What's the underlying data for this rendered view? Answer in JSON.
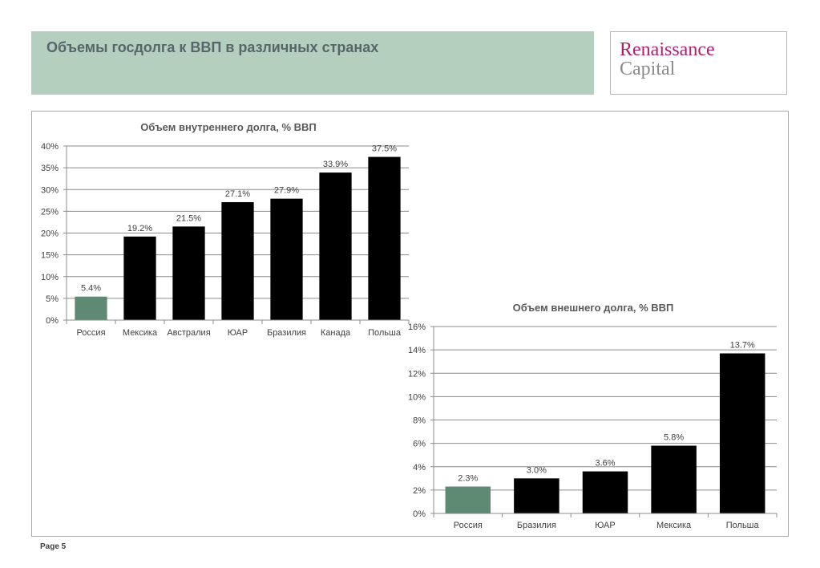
{
  "header": {
    "title": "Объемы госдолга к ВВП в различных странах"
  },
  "logo": {
    "line1": "Renaissance",
    "line2": "Capital"
  },
  "footer": {
    "page": "Page 5"
  },
  "colors": {
    "header_band": "#b5cfbf",
    "highlight_bar": "#5e8a74",
    "default_bar": "#000000",
    "logo_primary": "#b01e6e",
    "logo_secondary": "#8b8b8b"
  },
  "chart_data": [
    {
      "type": "bar",
      "title": "Объем внутреннего долга, % ВВП",
      "categories": [
        "Россия",
        "Мексика",
        "Австралия",
        "ЮАР",
        "Бразилия",
        "Канада",
        "Польша"
      ],
      "values": [
        5.4,
        19.2,
        21.5,
        27.1,
        27.9,
        33.9,
        37.5
      ],
      "data_labels": [
        "5.4%",
        "19.2%",
        "21.5%",
        "27.1%",
        "27.9%",
        "33.9%",
        "37.5%"
      ],
      "highlight_index": 0,
      "ylim": [
        0,
        40
      ],
      "yticks": [
        0,
        5,
        10,
        15,
        20,
        25,
        30,
        35,
        40
      ],
      "ytick_labels": [
        "0%",
        "5%",
        "10%",
        "15%",
        "20%",
        "25%",
        "30%",
        "35%",
        "40%"
      ],
      "grid": true
    },
    {
      "type": "bar",
      "title": "Объем внешнего долга, % ВВП",
      "categories": [
        "Россия",
        "Бразилия",
        "ЮАР",
        "Мексика",
        "Польша"
      ],
      "values": [
        2.3,
        3.0,
        3.6,
        5.8,
        13.7
      ],
      "data_labels": [
        "2.3%",
        "3.0%",
        "3.6%",
        "5.8%",
        "13.7%"
      ],
      "highlight_index": 0,
      "ylim": [
        0,
        16
      ],
      "yticks": [
        0,
        2,
        4,
        6,
        8,
        10,
        12,
        14,
        16
      ],
      "ytick_labels": [
        "0%",
        "2%",
        "4%",
        "6%",
        "8%",
        "10%",
        "12%",
        "14%",
        "16%"
      ],
      "grid": true
    }
  ]
}
